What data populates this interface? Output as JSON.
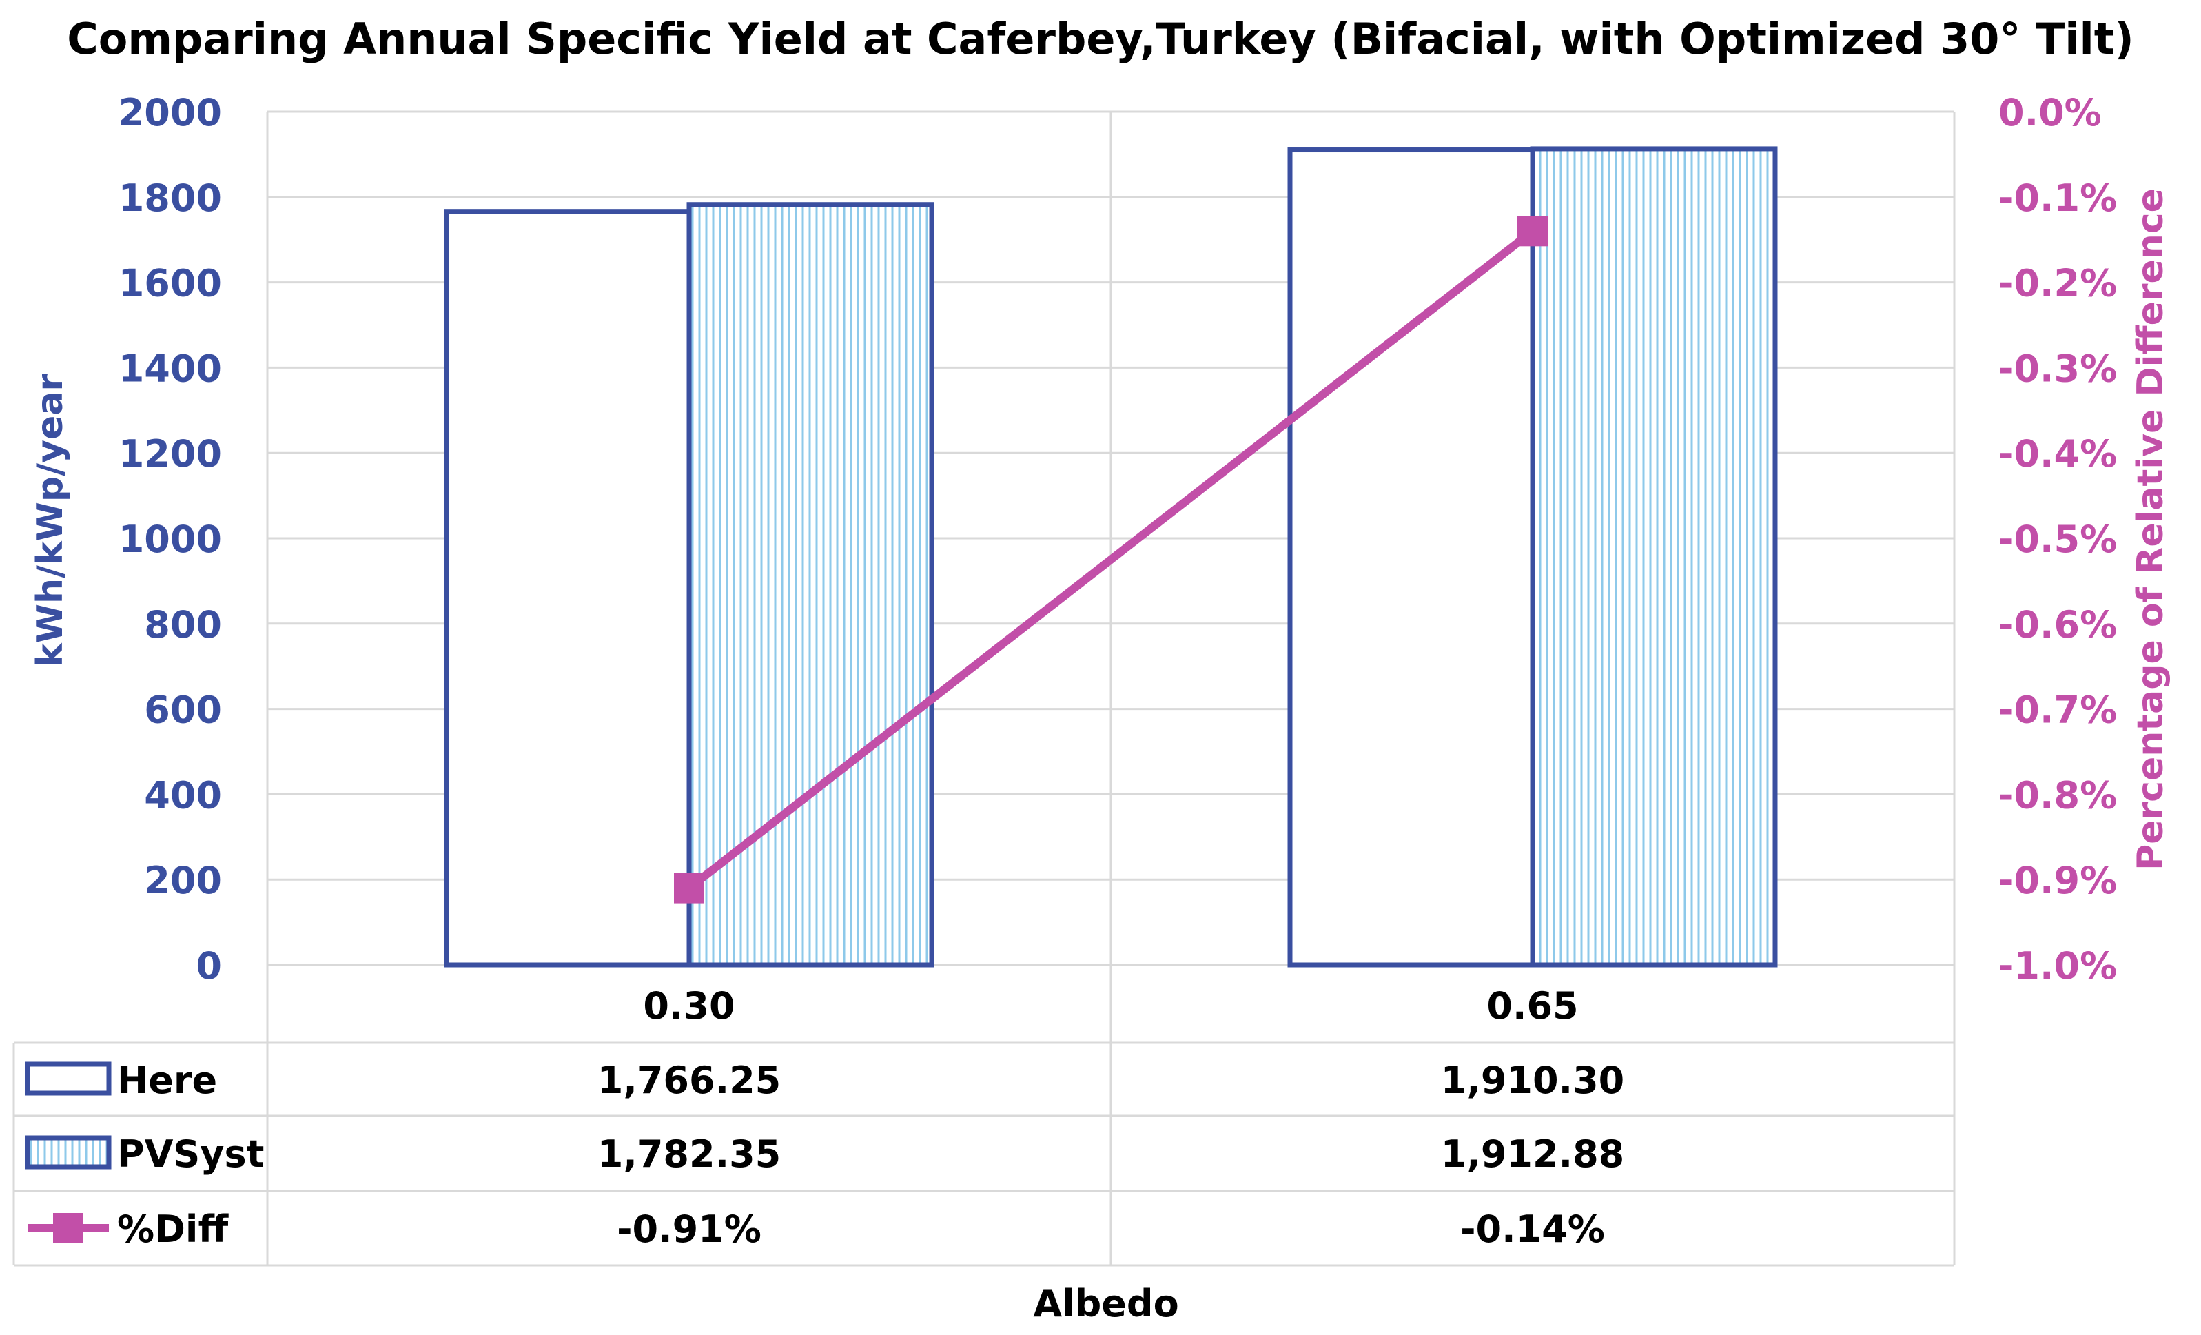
{
  "chart_data": {
    "type": "bar",
    "title": "Comparing Annual Specific Yield at Caferbey,Turkey (Bifacial, with Optimized 30° Tilt)",
    "xlabel": "Albedo",
    "ylabel": "kWh/kWp/year",
    "y2label": "Percentage of Relative Difference",
    "categories": [
      "0.30",
      "0.65"
    ],
    "ylim": [
      0,
      2000
    ],
    "yticks": [
      "0",
      "200",
      "400",
      "600",
      "800",
      "1000",
      "1200",
      "1400",
      "1600",
      "1800",
      "2000"
    ],
    "y2lim": [
      -1.0,
      0.0
    ],
    "y2ticks": [
      "-1.0%",
      "-0.9%",
      "-0.8%",
      "-0.7%",
      "-0.6%",
      "-0.5%",
      "-0.4%",
      "-0.3%",
      "-0.2%",
      "-0.1%",
      "0.0%"
    ],
    "grid": true,
    "series": [
      {
        "name": "Here",
        "type": "bar",
        "values": [
          1766.25,
          1910.3
        ],
        "labels": [
          "1,766.25",
          "1,910.30"
        ],
        "fill": "#ffffff",
        "pattern": "none",
        "stroke": "#3a4fa0"
      },
      {
        "name": "PVSyst",
        "type": "bar",
        "values": [
          1782.35,
          1912.88
        ],
        "labels": [
          "1,782.35",
          "1,912.88"
        ],
        "fill": "#ffffff",
        "pattern": "vertical-lines",
        "pattern_color": "#8ec9ea",
        "stroke": "#3a4fa0"
      },
      {
        "name": "%Diff",
        "type": "line",
        "axis": "secondary",
        "values": [
          -0.91,
          -0.14
        ],
        "labels": [
          "-0.91%",
          "-0.14%"
        ],
        "color": "#c24fa8",
        "marker": "square"
      }
    ],
    "legend": "data-table-below",
    "colors": {
      "axis_primary": "#3a4fa0",
      "axis_secondary": "#c24fa8",
      "grid": "#d9d9d9",
      "text": "#000000"
    }
  }
}
